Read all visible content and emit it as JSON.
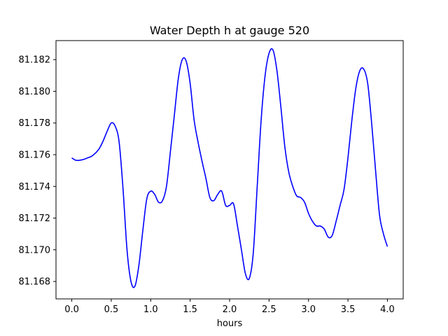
{
  "chart_data": {
    "type": "line",
    "title": "Water Depth h at gauge 520",
    "xlabel": "hours",
    "ylabel": "",
    "xlim": [
      -0.2,
      4.2
    ],
    "ylim": [
      81.1669,
      81.1832
    ],
    "xticks": [
      0.0,
      0.5,
      1.0,
      1.5,
      2.0,
      2.5,
      3.0,
      3.5,
      4.0
    ],
    "xtick_labels": [
      "0.0",
      "0.5",
      "1.0",
      "1.5",
      "2.0",
      "2.5",
      "3.0",
      "3.5",
      "4.0"
    ],
    "yticks": [
      81.168,
      81.17,
      81.172,
      81.174,
      81.176,
      81.178,
      81.18,
      81.182
    ],
    "ytick_labels": [
      "81.168",
      "81.170",
      "81.172",
      "81.174",
      "81.176",
      "81.178",
      "81.180",
      "81.182"
    ],
    "grid": false,
    "series": [
      {
        "name": "",
        "color": "#0000ff",
        "x": [
          0.0,
          0.05,
          0.1,
          0.15,
          0.2,
          0.25,
          0.3,
          0.35,
          0.4,
          0.45,
          0.5,
          0.55,
          0.6,
          0.65,
          0.7,
          0.75,
          0.8,
          0.85,
          0.9,
          0.95,
          1.0,
          1.05,
          1.1,
          1.15,
          1.2,
          1.25,
          1.3,
          1.35,
          1.4,
          1.45,
          1.5,
          1.55,
          1.6,
          1.65,
          1.7,
          1.75,
          1.8,
          1.85,
          1.9,
          1.95,
          2.0,
          2.05,
          2.1,
          2.15,
          2.2,
          2.25,
          2.3,
          2.35,
          2.4,
          2.45,
          2.5,
          2.55,
          2.6,
          2.65,
          2.7,
          2.75,
          2.8,
          2.85,
          2.9,
          2.95,
          3.0,
          3.05,
          3.1,
          3.15,
          3.2,
          3.25,
          3.3,
          3.35,
          3.4,
          3.45,
          3.5,
          3.55,
          3.6,
          3.65,
          3.7,
          3.75,
          3.8,
          3.85,
          3.9,
          3.95,
          4.0
        ],
        "y": [
          81.1758,
          81.17565,
          81.17565,
          81.1757,
          81.1758,
          81.1759,
          81.1761,
          81.1764,
          81.1769,
          81.1775,
          81.178,
          81.1778,
          81.1768,
          81.1738,
          81.17,
          81.168,
          81.1677,
          81.169,
          81.1712,
          81.1732,
          81.1737,
          81.1735,
          81.173,
          81.1731,
          81.174,
          81.1762,
          81.1785,
          81.1808,
          81.182,
          81.1819,
          81.1805,
          81.1782,
          81.1768,
          81.1756,
          81.1745,
          81.1733,
          81.1731,
          81.1735,
          81.1737,
          81.1728,
          81.1728,
          81.1729,
          81.1715,
          81.17,
          81.1685,
          81.1682,
          81.1698,
          81.174,
          81.1782,
          81.181,
          81.1824,
          81.1826,
          81.1813,
          81.179,
          81.1765,
          81.1749,
          81.174,
          81.1734,
          81.1733,
          81.173,
          81.1723,
          81.1718,
          81.1715,
          81.1715,
          81.1713,
          81.1708,
          81.1709,
          81.1718,
          81.1728,
          81.1738,
          81.1758,
          81.1782,
          81.1802,
          81.1813,
          81.1814,
          81.1805,
          81.178,
          81.175,
          81.1722,
          81.171,
          81.1702
        ]
      }
    ]
  }
}
